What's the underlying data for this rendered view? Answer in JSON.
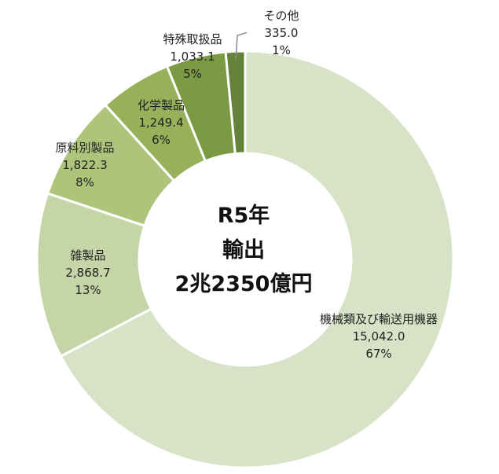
{
  "chart_data": {
    "type": "pie",
    "style": "donut",
    "center_title": [
      "R5年",
      "輸出",
      "2兆2350億円"
    ],
    "categories": [
      "機械類及び輸送用機器",
      "雑製品",
      "原料別製品",
      "化学製品",
      "特殊取扱品",
      "その他"
    ],
    "values": [
      15042.0,
      2868.7,
      1822.3,
      1249.4,
      1033.1,
      335.0
    ],
    "value_labels": [
      "15,042.0",
      "2,868.7",
      "1,822.3",
      "1,249.4",
      "1,033.1",
      "335.0"
    ],
    "percent_labels": [
      "67%",
      "13%",
      "8%",
      "6%",
      "5%",
      "1%"
    ],
    "colors": [
      "#d8e2c6",
      "#c5d5a7",
      "#adc47a",
      "#96b15a",
      "#7b9a44",
      "#64823a"
    ],
    "legend": "none"
  }
}
